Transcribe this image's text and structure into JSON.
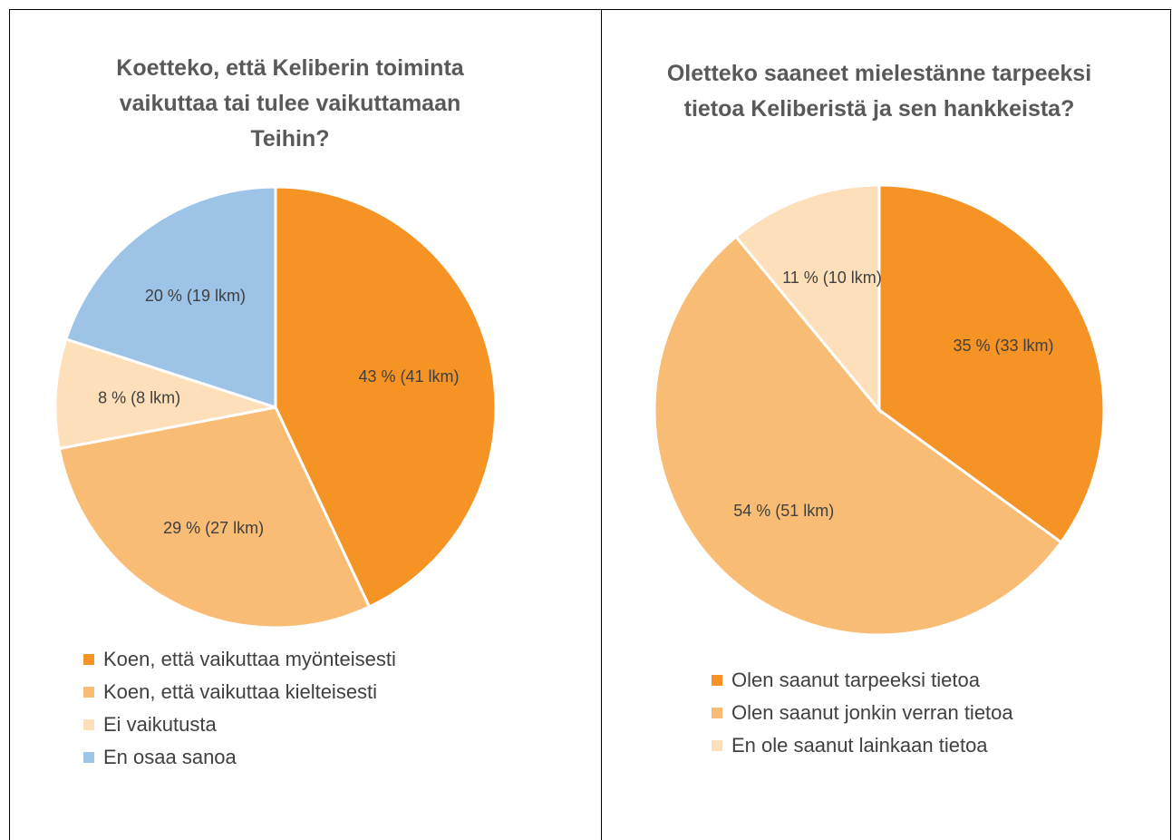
{
  "chart_data": [
    {
      "type": "pie",
      "title": "Koetteko, että Keliberin toiminta vaikuttaa tai tulee vaikuttamaan Teihin?",
      "categories": [
        "Koen, että vaikuttaa myönteisesti",
        "Koen, että vaikuttaa kielteisesti",
        "Ei vaikutusta",
        "En osaa sanoa"
      ],
      "values": [
        43,
        29,
        8,
        20
      ],
      "value_labels": [
        "43 % (41 lkm)",
        "29 % (27 lkm)",
        "8 % (8 lkm)",
        "20 % (19 lkm)"
      ],
      "colors": [
        "#f59324",
        "#f9bc74",
        "#fddfb9",
        "#9dc3e6"
      ],
      "legend": "bottom"
    },
    {
      "type": "pie",
      "title": "Oletteko saaneet mielestänne tarpeeksi tietoa Keliberistä ja sen hankkeista?",
      "categories": [
        "Olen saanut tarpeeksi tietoa",
        "Olen saanut jonkin verran tietoa",
        "En ole saanut lainkaan tietoa"
      ],
      "values": [
        35,
        54,
        11
      ],
      "value_labels": [
        "35 % (33 lkm)",
        "54 % (51 lkm)",
        "11 % (10 lkm)"
      ],
      "colors": [
        "#f59324",
        "#f9bc74",
        "#fddfb9"
      ],
      "legend": "bottom"
    }
  ]
}
